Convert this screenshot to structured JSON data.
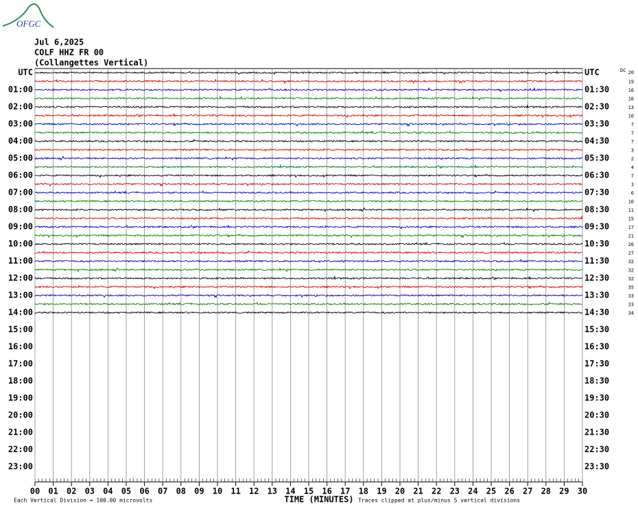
{
  "logo": "OFGC",
  "header": {
    "date": "Jul 6,2025",
    "station": "COLF HHZ FR 00",
    "name": "(Collangettes Vertical)"
  },
  "chart_data": {
    "type": "helicorder",
    "left_labels": [
      "UTC",
      "01:00",
      "02:00",
      "03:00",
      "04:00",
      "05:00",
      "06:00",
      "07:00",
      "08:00",
      "09:00",
      "10:00",
      "11:00",
      "12:00",
      "13:00",
      "14:00",
      "15:00",
      "16:00",
      "17:00",
      "18:00",
      "19:00",
      "20:00",
      "21:00",
      "22:00",
      "23:00"
    ],
    "right_labels": [
      "UTC",
      "01:30",
      "02:30",
      "03:30",
      "04:30",
      "05:30",
      "06:30",
      "07:30",
      "08:30",
      "09:30",
      "10:30",
      "11:30",
      "12:30",
      "13:30",
      "14:30",
      "15:30",
      "16:30",
      "17:30",
      "18:30",
      "19:30",
      "20:30",
      "21:30",
      "22:30",
      "23:30"
    ],
    "dc_label": "DC",
    "dc_values": [
      20,
      19,
      16,
      16,
      13,
      10,
      7,
      7,
      7,
      3,
      2,
      4,
      7,
      3,
      6,
      10,
      11,
      15,
      17,
      21,
      26,
      27,
      32,
      32,
      32,
      35,
      33,
      33,
      34
    ],
    "trace_colors": [
      "#000000",
      "#e00000",
      "#0000c0",
      "#008000"
    ],
    "xlabel": "TIME (MINUTES)",
    "xlim": [
      0,
      30
    ],
    "xticks": [
      {
        "value": 0,
        "label": "00"
      },
      {
        "value": 1,
        "label": "01"
      },
      {
        "value": 2,
        "label": "02"
      },
      {
        "value": 3,
        "label": "03"
      },
      {
        "value": 4,
        "label": "04"
      },
      {
        "value": 5,
        "label": "05"
      },
      {
        "value": 6,
        "label": "06"
      },
      {
        "value": 7,
        "label": "07"
      },
      {
        "value": 8,
        "label": "08"
      },
      {
        "value": 9,
        "label": "09"
      },
      10,
      11,
      12,
      13,
      14,
      15,
      16,
      17,
      18,
      19,
      20,
      21,
      22,
      23,
      24,
      25,
      26,
      27,
      28,
      29,
      30
    ],
    "grid": true,
    "footer_left": "Each Vertical Division =  100.00 microvolts",
    "footer_right": "Traces clipped at plus/minus 5 vertical divisions"
  }
}
